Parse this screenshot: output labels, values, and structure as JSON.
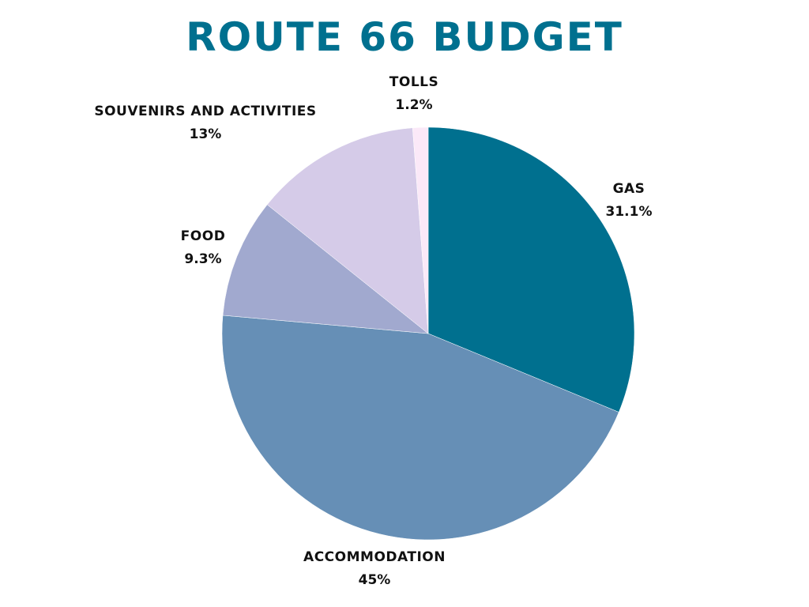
{
  "chart_data": {
    "type": "pie",
    "title": "ROUTE 66 BUDGET",
    "slices": [
      {
        "label": "GAS",
        "value": 31.1,
        "display": "31.1%",
        "color": "#00708f"
      },
      {
        "label": "ACCOMMODATION",
        "value": 45,
        "display": "45%",
        "color": "#668fb6"
      },
      {
        "label": "FOOD",
        "value": 9.3,
        "display": "9.3%",
        "color": "#a1a9cf"
      },
      {
        "label": "SOUVENIRS AND ACTIVITIES",
        "value": 13,
        "display": "13%",
        "color": "#d5cbe8"
      },
      {
        "label": "TOLLS",
        "value": 1.2,
        "display": "1.2%",
        "color": "#fbe9f8"
      }
    ],
    "start_angle": "12 o'clock",
    "direction": "clockwise"
  }
}
